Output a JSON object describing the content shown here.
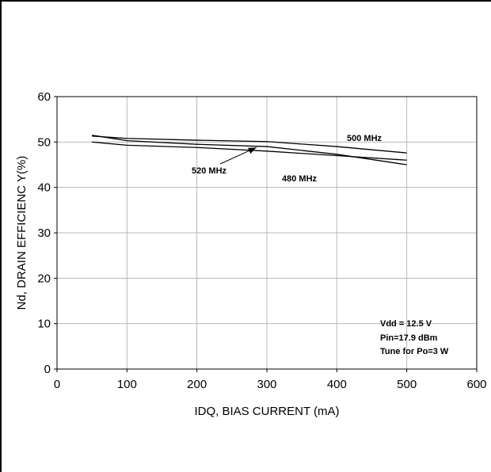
{
  "chart_data": {
    "type": "line",
    "xlabel": "IDQ, BIAS CURRENT (mA)",
    "ylabel": "Nd, DRAIN EFFICIENC Y(%)",
    "xlim": [
      0,
      600
    ],
    "ylim": [
      0,
      60
    ],
    "xticks": [
      0,
      100,
      200,
      300,
      400,
      500,
      600
    ],
    "yticks": [
      0,
      10,
      20,
      30,
      40,
      50,
      60
    ],
    "grid": true,
    "series": [
      {
        "name": "500 MHz",
        "x": [
          50,
          100,
          200,
          300,
          400,
          500
        ],
        "y": [
          51.3,
          50.8,
          50.4,
          50.1,
          49.0,
          47.6
        ]
      },
      {
        "name": "520 MHz",
        "x": [
          50,
          100,
          200,
          300,
          400,
          500
        ],
        "y": [
          51.5,
          50.3,
          49.5,
          49.0,
          47.3,
          45.0
        ]
      },
      {
        "name": "480 MHz",
        "x": [
          50,
          100,
          200,
          300,
          400,
          500
        ],
        "y": [
          50.0,
          49.3,
          48.8,
          48.0,
          47.0,
          46.0
        ]
      }
    ],
    "annotations": [
      "Vdd = 12.5 V",
      "Pin=17.9 dBm",
      "Tune for Po=3 W"
    ]
  }
}
